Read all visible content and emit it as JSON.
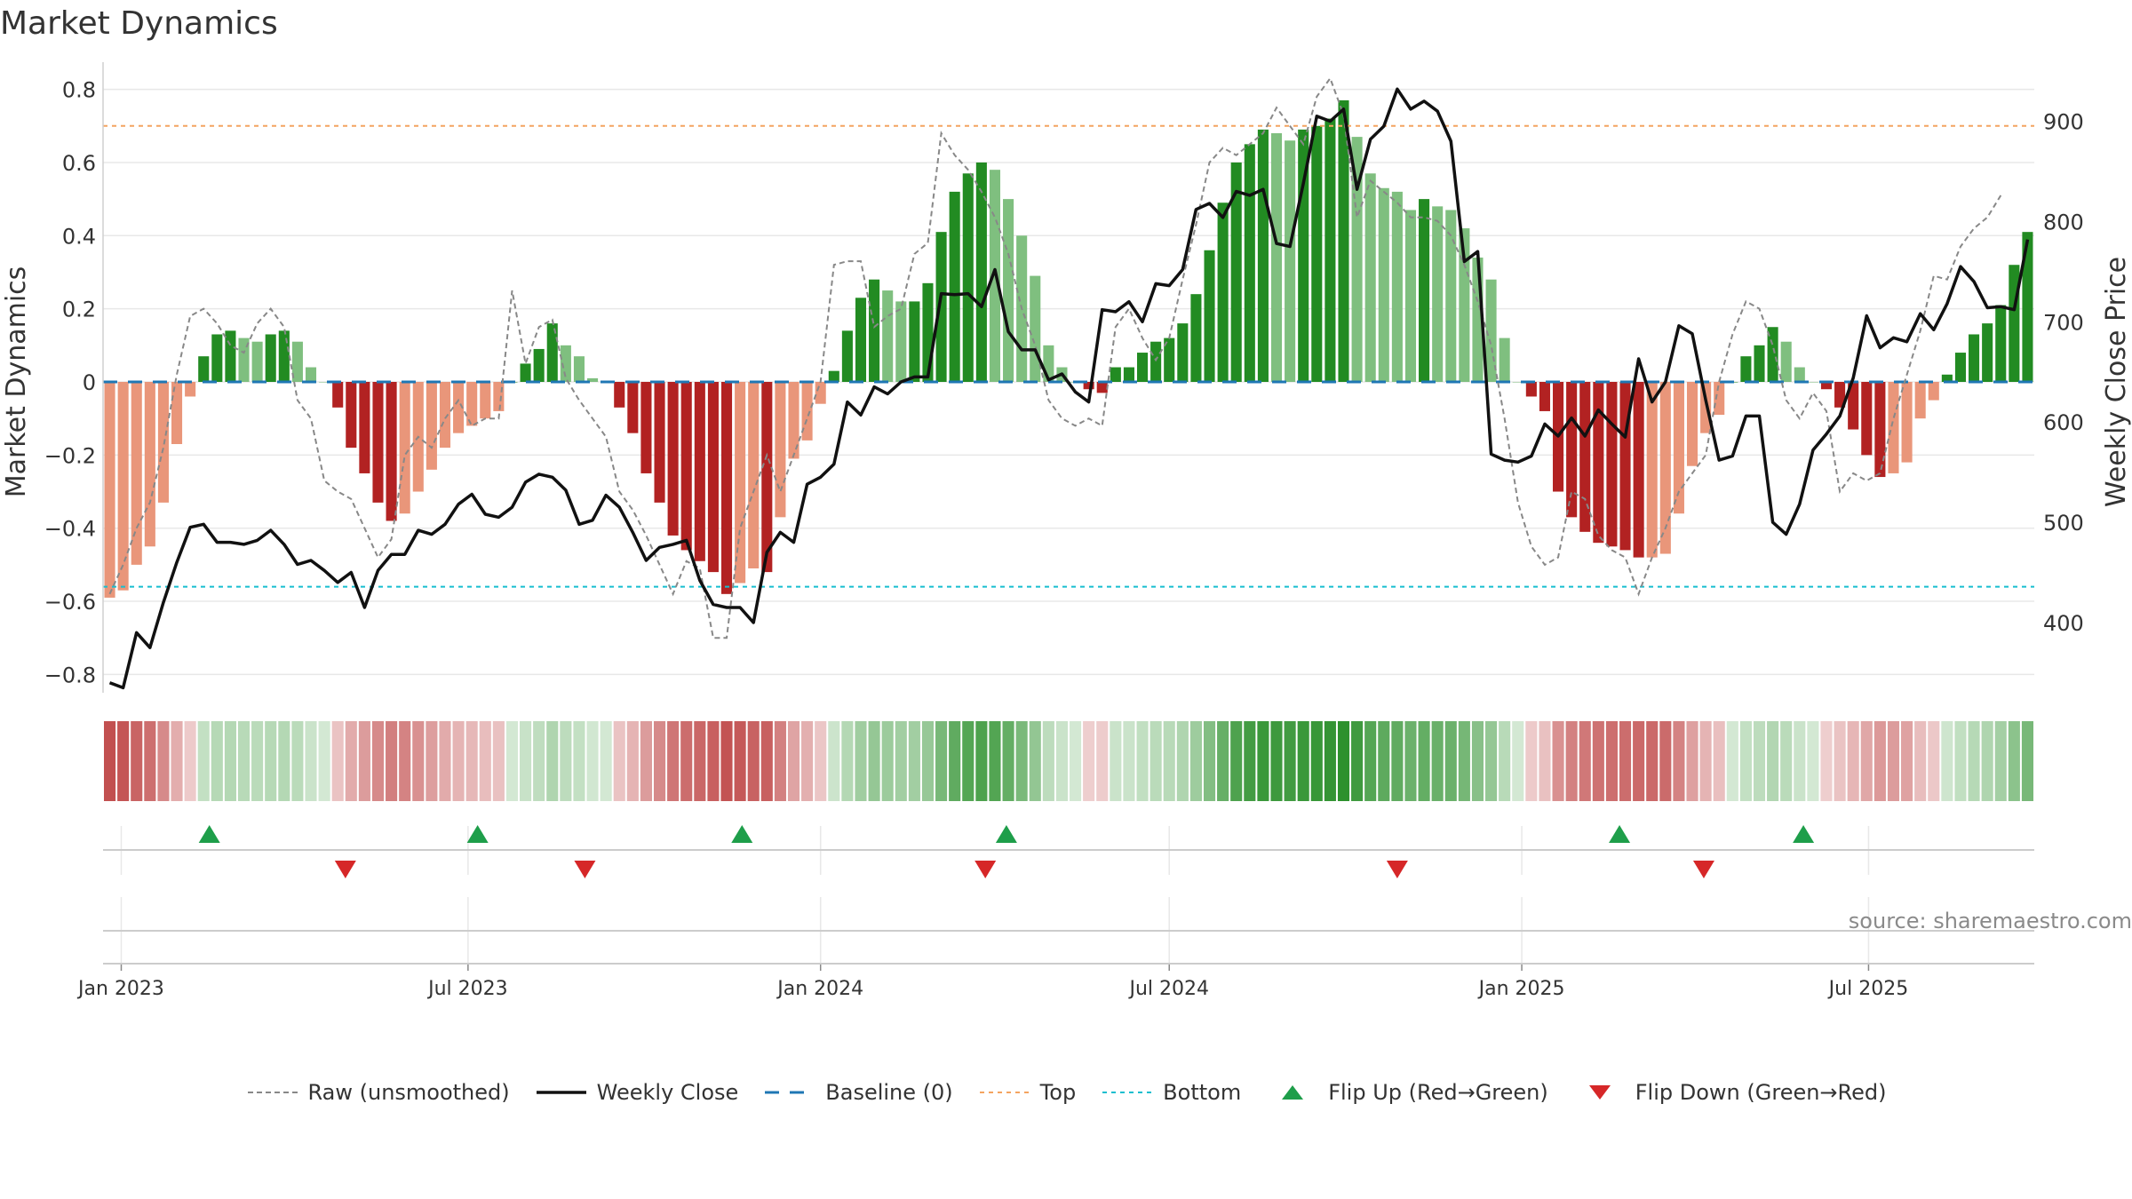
{
  "chart_data": {
    "type": "bar",
    "title": "Market Dynamics",
    "ylabel": "Market Dynamics",
    "y2label": "Weekly Close Price",
    "ylim": [
      -0.85,
      0.85
    ],
    "y2lim": [
      330,
      950
    ],
    "grid": true,
    "legend_position": "bottom",
    "start_date": "2022-12-26",
    "week_count": 144,
    "yticks": [
      -0.8,
      -0.6,
      -0.4,
      -0.2,
      0,
      0.2,
      0.4,
      0.6,
      0.8
    ],
    "ytick_labels": [
      "−0.8",
      "−0.6",
      "−0.4",
      "−0.2",
      "0",
      "0.2",
      "0.4",
      "0.6",
      "0.8"
    ],
    "y2ticks": [
      400,
      500,
      600,
      700,
      800,
      900
    ],
    "xticks": [
      {
        "date": "2023-01-01",
        "label": "Jan 2023"
      },
      {
        "date": "2023-07-01",
        "label": "Jul 2023"
      },
      {
        "date": "2024-01-01",
        "label": "Jan 2024"
      },
      {
        "date": "2024-07-01",
        "label": "Jul 2024"
      },
      {
        "date": "2025-01-01",
        "label": "Jan 2025"
      },
      {
        "date": "2025-07-01",
        "label": "Jul 2025"
      }
    ],
    "top_level": 0.7,
    "bottom_level": -0.56,
    "baseline": 0,
    "series": [
      {
        "name": "Market Dynamics (smoothed)",
        "values": [
          -0.59,
          -0.57,
          -0.5,
          -0.45,
          -0.33,
          -0.17,
          -0.04,
          0.07,
          0.13,
          0.14,
          0.12,
          0.11,
          0.13,
          0.14,
          0.11,
          0.04,
          0,
          -0.07,
          -0.18,
          -0.25,
          -0.33,
          -0.38,
          -0.36,
          -0.3,
          -0.24,
          -0.18,
          -0.14,
          -0.12,
          -0.1,
          -0.08,
          0,
          0.05,
          0.09,
          0.16,
          0.1,
          0.07,
          0.01,
          0,
          -0.07,
          -0.14,
          -0.25,
          -0.33,
          -0.42,
          -0.46,
          -0.49,
          -0.52,
          -0.58,
          -0.55,
          -0.51,
          -0.52,
          -0.37,
          -0.21,
          -0.16,
          -0.06,
          0.03,
          0.14,
          0.23,
          0.28,
          0.25,
          0.22,
          0.22,
          0.27,
          0.41,
          0.52,
          0.57,
          0.6,
          0.58,
          0.5,
          0.4,
          0.29,
          0.1,
          0.04,
          0,
          -0.02,
          -0.03,
          0.04,
          0.04,
          0.08,
          0.11,
          0.12,
          0.16,
          0.24,
          0.36,
          0.49,
          0.6,
          0.65,
          0.69,
          0.68,
          0.66,
          0.69,
          0.7,
          0.72,
          0.77,
          0.67,
          0.57,
          0.53,
          0.52,
          0.47,
          0.5,
          0.48,
          0.47,
          0.42,
          0.34,
          0.28,
          0.12,
          0,
          -0.04,
          -0.08,
          -0.3,
          -0.37,
          -0.41,
          -0.44,
          -0.45,
          -0.46,
          -0.48,
          -0.48,
          -0.47,
          -0.36,
          -0.23,
          -0.14,
          -0.09,
          0,
          0.07,
          0.1,
          0.15,
          0.11,
          0.04,
          0,
          -0.02,
          -0.07,
          -0.13,
          -0.2,
          -0.26,
          -0.25,
          -0.22,
          -0.1,
          -0.05,
          0.02,
          0.08,
          0.13,
          0.16,
          0.21,
          0.32,
          0.41
        ]
      },
      {
        "name": "Raw (unsmoothed)",
        "values": [
          -0.58,
          -0.5,
          -0.4,
          -0.33,
          -0.18,
          0.02,
          0.18,
          0.2,
          0.16,
          0.1,
          0.08,
          0.16,
          0.2,
          0.15,
          -0.05,
          -0.1,
          -0.27,
          -0.3,
          -0.32,
          -0.4,
          -0.48,
          -0.43,
          -0.2,
          -0.15,
          -0.18,
          -0.1,
          -0.05,
          -0.12,
          -0.1,
          -0.1,
          0.25,
          0.05,
          0.15,
          0.17,
          0.01,
          -0.05,
          -0.1,
          -0.15,
          -0.3,
          -0.35,
          -0.42,
          -0.5,
          -0.58,
          -0.49,
          -0.51,
          -0.7,
          -0.7,
          -0.4,
          -0.3,
          -0.2,
          -0.3,
          -0.2,
          -0.1,
          0,
          0.32,
          0.33,
          0.33,
          0.15,
          0.18,
          0.2,
          0.35,
          0.38,
          0.68,
          0.62,
          0.58,
          0.52,
          0.45,
          0.35,
          0.2,
          0.1,
          -0.05,
          -0.1,
          -0.12,
          -0.1,
          -0.12,
          0.15,
          0.2,
          0.12,
          0.06,
          0.12,
          0.28,
          0.43,
          0.6,
          0.64,
          0.62,
          0.65,
          0.68,
          0.75,
          0.7,
          0.65,
          0.78,
          0.83,
          0.73,
          0.45,
          0.55,
          0.52,
          0.49,
          0.45,
          0.45,
          0.44,
          0.4,
          0.32,
          0.22,
          0.1,
          -0.1,
          -0.33,
          -0.45,
          -0.5,
          -0.48,
          -0.3,
          -0.32,
          -0.42,
          -0.46,
          -0.48,
          -0.58,
          -0.48,
          -0.4,
          -0.3,
          -0.25,
          -0.2,
          0,
          0.13,
          0.22,
          0.2,
          0.1,
          -0.05,
          -0.1,
          -0.03,
          -0.08,
          -0.3,
          -0.25,
          -0.27,
          -0.25,
          -0.1,
          0.02,
          0.14,
          0.29,
          0.28,
          0.37,
          0.42,
          0.45,
          0.51
        ]
      },
      {
        "name": "Weekly Close",
        "values": [
          340,
          335,
          390,
          375,
          420,
          460,
          495,
          498,
          480,
          480,
          478,
          482,
          492,
          478,
          458,
          462,
          452,
          440,
          450,
          415,
          452,
          468,
          468,
          492,
          488,
          498,
          518,
          528,
          508,
          505,
          515,
          540,
          548,
          545,
          532,
          498,
          502,
          527,
          515,
          490,
          462,
          475,
          478,
          482,
          442,
          418,
          415,
          415,
          400,
          470,
          490,
          480,
          538,
          545,
          558,
          620,
          607,
          635,
          628,
          640,
          645,
          645,
          728,
          727,
          728,
          715,
          752,
          690,
          672,
          672,
          642,
          648,
          630,
          620,
          712,
          710,
          720,
          700,
          738,
          736,
          752,
          812,
          818,
          804,
          830,
          826,
          832,
          778,
          775,
          838,
          905,
          900,
          912,
          832,
          882,
          895,
          932,
          912,
          920,
          910,
          880,
          760,
          770,
          568,
          562,
          560,
          566,
          598,
          586,
          604,
          586,
          612,
          598,
          585,
          663,
          620,
          640,
          696,
          688,
          622,
          562,
          566,
          606,
          606,
          500,
          488,
          518,
          572,
          588,
          606,
          644,
          706,
          674,
          684,
          680,
          708,
          692,
          718,
          755,
          740,
          714,
          715,
          712,
          782
        ]
      }
    ],
    "flip_up_dates": [
      "2023-02-16",
      "2023-07-06",
      "2023-11-21",
      "2024-04-07",
      "2025-02-21",
      "2025-05-28"
    ],
    "flip_down_dates": [
      "2023-04-28",
      "2023-08-31",
      "2024-03-27",
      "2024-10-28",
      "2025-04-06"
    ]
  },
  "legend": [
    {
      "key": "raw",
      "label": "Raw (unsmoothed)"
    },
    {
      "key": "close",
      "label": "Weekly Close"
    },
    {
      "key": "baseline",
      "label": "Baseline (0)"
    },
    {
      "key": "top",
      "label": "Top"
    },
    {
      "key": "bottom",
      "label": "Bottom"
    },
    {
      "key": "flipup",
      "label": "Flip Up (Red→Green)"
    },
    {
      "key": "flipdown",
      "label": "Flip Down (Green→Red)"
    }
  ],
  "watermark": "source: sharemaestro.com",
  "colors": {
    "dark_green": "#228b22",
    "light_green": "#7fbf7f",
    "dark_red": "#b22222",
    "light_red": "#e9967a",
    "raw_line": "#888888",
    "close_line": "#111111",
    "baseline": "#1f77b4",
    "top": "#f4a460",
    "bottom": "#17becf",
    "flip_up": "#1e9e4a",
    "flip_down": "#d62728",
    "grid": "#e8e8e8"
  }
}
